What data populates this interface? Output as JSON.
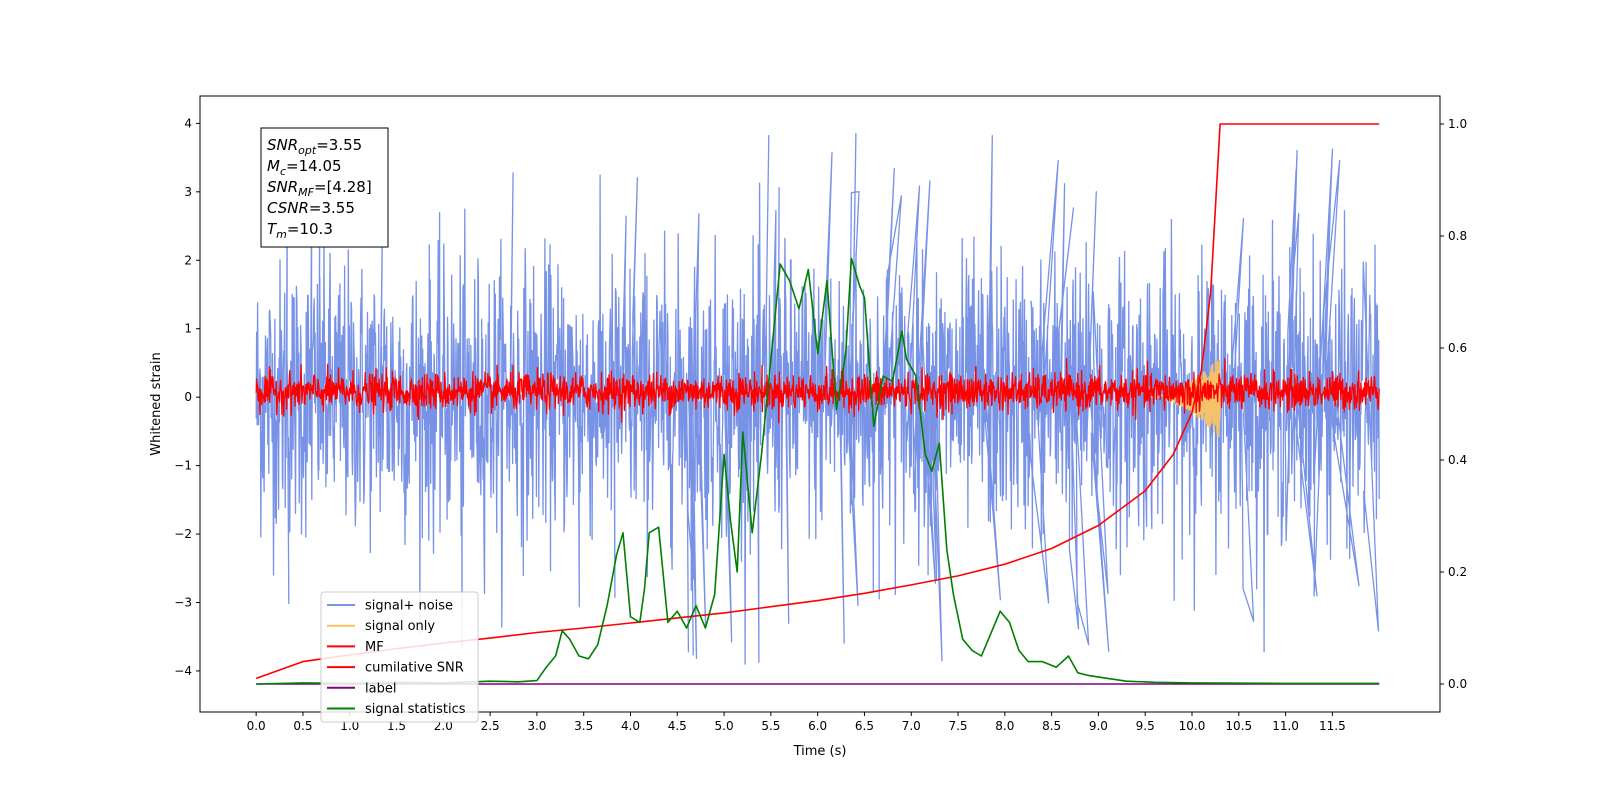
{
  "chart_data": {
    "type": "line",
    "xlabel": "Time (s)",
    "ylabel": "Whitened strain",
    "xlim": [
      -0.6,
      12.65
    ],
    "ylim": [
      -4.6,
      4.4
    ],
    "y2lim": [
      -0.05,
      1.05
    ],
    "x_ticks": [
      0.0,
      0.5,
      1.0,
      1.5,
      2.0,
      2.5,
      3.0,
      3.5,
      4.0,
      4.5,
      5.0,
      5.5,
      6.0,
      6.5,
      7.0,
      7.5,
      8.0,
      8.5,
      9.0,
      9.5,
      10.0,
      10.5,
      11.0,
      11.5
    ],
    "x_tick_labels": [
      "0.0",
      "0.5",
      "1.0",
      "1.5",
      "2.0",
      "2.5",
      "3.0",
      "3.5",
      "4.0",
      "4.5",
      "5.0",
      "5.5",
      "6.0",
      "6.5",
      "7.0",
      "7.5",
      "8.0",
      "8.5",
      "9.0",
      "9.5",
      "10.0",
      "10.5",
      "11.0",
      "11.5"
    ],
    "y_ticks": [
      -4,
      -3,
      -2,
      -1,
      0,
      1,
      2,
      3,
      4
    ],
    "y_tick_labels": [
      "−4",
      "−3",
      "−2",
      "−1",
      "0",
      "1",
      "2",
      "3",
      "4"
    ],
    "y2_ticks": [
      0.0,
      0.2,
      0.4,
      0.6,
      0.8,
      1.0
    ],
    "y2_tick_labels": [
      "0.0",
      "0.2",
      "0.4",
      "0.6",
      "0.8",
      "1.0"
    ],
    "grid": false,
    "legend_position": "lower-left",
    "info_box": [
      {
        "base": "SNR",
        "sub": "opt",
        "value": "=3.55"
      },
      {
        "base": "M",
        "sub": "c",
        "value": "=14.05"
      },
      {
        "base": "SNR",
        "sub": "MF",
        "value": "=[4.28]"
      },
      {
        "base": "CSNR",
        "sub": "",
        "value": "=3.55"
      },
      {
        "base": "T",
        "sub": "m",
        "value": "=10.3"
      }
    ],
    "series": [
      {
        "name": "signal+ noise",
        "color": "#7893e6",
        "axis": "left",
        "kind": "noise",
        "x_range": [
          0.0,
          12.0
        ],
        "amplitude_typical": 1.8,
        "amplitude_max": 3.9
      },
      {
        "name": "signal only",
        "color": "#f5c26b",
        "axis": "left",
        "kind": "chirp",
        "x_range": [
          9.5,
          10.3
        ],
        "amplitude_max": 0.6
      },
      {
        "name": "MF",
        "color": "#ff0000",
        "axis": "left",
        "kind": "noise",
        "x_range": [
          0.0,
          12.0
        ],
        "amplitude_typical": 0.35,
        "amplitude_max": 0.85
      },
      {
        "name": "cumilative SNR",
        "color": "#ff0000",
        "axis": "right",
        "x": [
          0.0,
          0.5,
          1.0,
          1.5,
          2.0,
          2.5,
          3.0,
          3.5,
          4.0,
          4.5,
          5.0,
          5.5,
          6.0,
          6.5,
          7.0,
          7.5,
          8.0,
          8.5,
          9.0,
          9.5,
          9.8,
          10.0,
          10.1,
          10.2,
          10.25,
          10.3,
          12.0
        ],
        "values": [
          0.01,
          0.04,
          0.052,
          0.063,
          0.073,
          0.082,
          0.092,
          0.1,
          0.109,
          0.118,
          0.127,
          0.138,
          0.149,
          0.162,
          0.177,
          0.193,
          0.214,
          0.242,
          0.283,
          0.345,
          0.41,
          0.485,
          0.56,
          0.7,
          0.85,
          1.0,
          1.0
        ]
      },
      {
        "name": "label",
        "color": "#800080",
        "axis": "right",
        "x": [
          0.0,
          12.0
        ],
        "values": [
          0.0,
          0.0
        ]
      },
      {
        "name": "signal statistics",
        "color": "#008000",
        "axis": "right",
        "x": [
          0.0,
          0.5,
          1.0,
          1.5,
          2.0,
          2.5,
          2.8,
          3.0,
          3.1,
          3.2,
          3.27,
          3.35,
          3.45,
          3.55,
          3.65,
          3.75,
          3.85,
          3.92,
          4.0,
          4.1,
          4.15,
          4.2,
          4.3,
          4.4,
          4.5,
          4.6,
          4.7,
          4.8,
          4.9,
          5.0,
          5.07,
          5.14,
          5.2,
          5.3,
          5.4,
          5.5,
          5.6,
          5.7,
          5.8,
          5.9,
          6.0,
          6.1,
          6.2,
          6.3,
          6.36,
          6.45,
          6.5,
          6.6,
          6.7,
          6.8,
          6.9,
          6.95,
          7.05,
          7.15,
          7.22,
          7.3,
          7.38,
          7.45,
          7.55,
          7.65,
          7.75,
          7.85,
          7.95,
          8.05,
          8.15,
          8.25,
          8.4,
          8.55,
          8.68,
          8.78,
          8.9,
          9.1,
          9.3,
          9.6,
          10.0,
          11.0,
          12.0
        ],
        "values": [
          0.0,
          0.002,
          0.001,
          0.003,
          0.002,
          0.005,
          0.004,
          0.006,
          0.03,
          0.05,
          0.095,
          0.08,
          0.05,
          0.045,
          0.07,
          0.14,
          0.23,
          0.27,
          0.12,
          0.11,
          0.17,
          0.27,
          0.28,
          0.11,
          0.13,
          0.1,
          0.14,
          0.1,
          0.16,
          0.41,
          0.29,
          0.2,
          0.45,
          0.27,
          0.41,
          0.58,
          0.75,
          0.72,
          0.67,
          0.74,
          0.59,
          0.72,
          0.49,
          0.59,
          0.76,
          0.71,
          0.69,
          0.46,
          0.55,
          0.54,
          0.63,
          0.58,
          0.55,
          0.41,
          0.38,
          0.43,
          0.24,
          0.16,
          0.08,
          0.06,
          0.05,
          0.09,
          0.13,
          0.11,
          0.06,
          0.04,
          0.04,
          0.03,
          0.05,
          0.02,
          0.015,
          0.01,
          0.005,
          0.003,
          0.002,
          0.001,
          0.001
        ]
      }
    ]
  }
}
